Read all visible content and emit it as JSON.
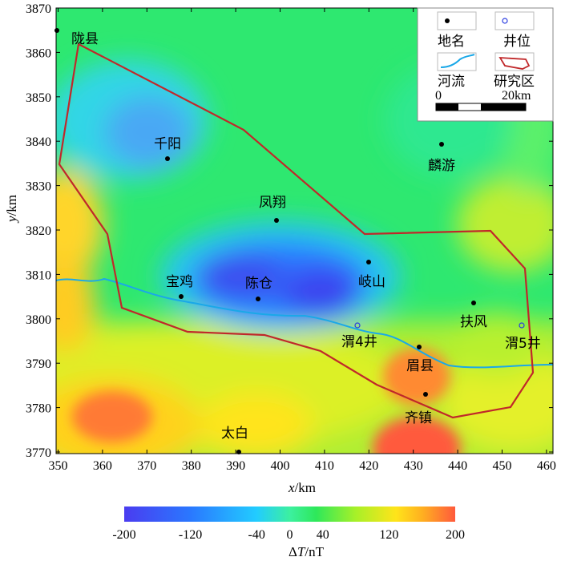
{
  "map": {
    "x_axis": {
      "title_italic": "x",
      "title_rest": "/km",
      "ticks": [
        "350",
        "360",
        "370",
        "380",
        "390",
        "400",
        "410",
        "420",
        "430",
        "440",
        "450",
        "460"
      ]
    },
    "y_axis": {
      "title_italic": "y",
      "title_rest": "/km",
      "ticks": [
        "3870",
        "3860",
        "3850",
        "3840",
        "3830",
        "3820",
        "3810",
        "3800",
        "3790",
        "3780",
        "3770"
      ]
    },
    "places": [
      {
        "name": "陇县"
      },
      {
        "name": "千阳"
      },
      {
        "name": "麟游"
      },
      {
        "name": "凤翔"
      },
      {
        "name": "岐山"
      },
      {
        "name": "宝鸡"
      },
      {
        "name": "陈仓"
      },
      {
        "name": "扶风"
      },
      {
        "name": "眉县"
      },
      {
        "name": "齐镇"
      },
      {
        "name": "太白"
      }
    ],
    "wells": [
      {
        "name": "渭4井"
      },
      {
        "name": "渭5井"
      }
    ],
    "anomaly_field": {
      "strong_negative": "宝鸡—岐山",
      "negative": "千阳",
      "positive": [
        "眉县",
        "齐镇",
        "太白"
      ]
    }
  },
  "legend": {
    "place_label": "地名",
    "well_label": "井位",
    "river_label": "河流",
    "study_area_label": "研究区",
    "scale_start": "0",
    "scale_end": "20km"
  },
  "colorbar": {
    "ticks": [
      "-200",
      "-120",
      "-40",
      "0",
      "40",
      "120",
      "200"
    ],
    "title_delta": "Δ",
    "title_italic": "T",
    "title_unit": "/nT",
    "colors": [
      "#4a3cf0",
      "#2a78ff",
      "#22ccff",
      "#3cf0a0",
      "#2ee85a",
      "#a8f028",
      "#ffe41a",
      "#ffb020",
      "#ff5a3c"
    ]
  },
  "colors": {
    "study_area_boundary": "#c0282a",
    "river": "#1aa8e8",
    "well_marker": "#2a3ce0",
    "place_marker": "#000000"
  }
}
